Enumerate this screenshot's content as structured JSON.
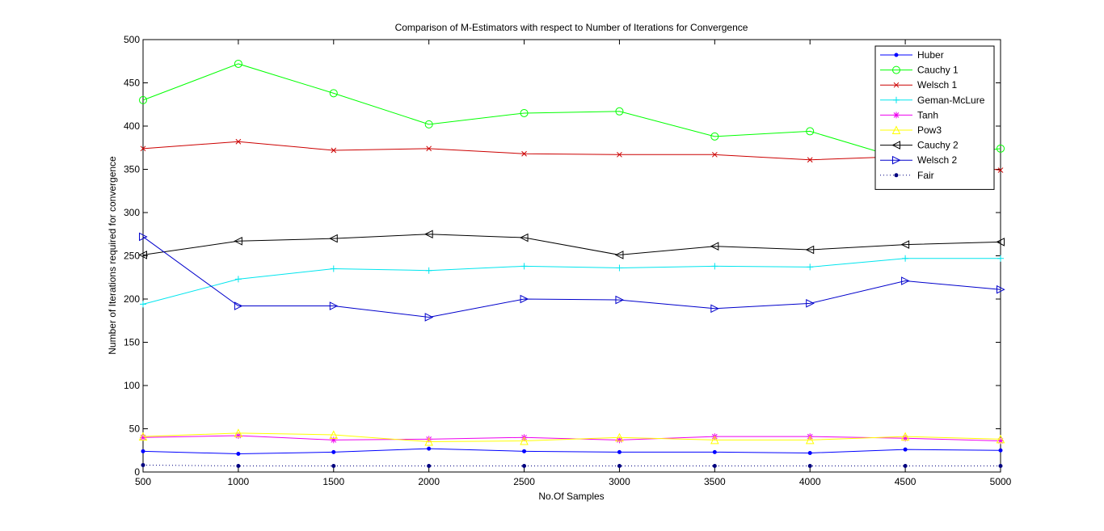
{
  "chart_data": {
    "type": "line",
    "title": "Comparison of M-Estimators with respect to Number of Iterations for Convergence",
    "xlabel": "No.Of Samples",
    "ylabel": "Number of Iterations required for convergence",
    "xlim": [
      500,
      5000
    ],
    "ylim": [
      0,
      500
    ],
    "xticks": [
      500,
      1000,
      1500,
      2000,
      2500,
      3000,
      3500,
      4000,
      4500,
      5000
    ],
    "yticks": [
      0,
      50,
      100,
      150,
      200,
      250,
      300,
      350,
      400,
      450,
      500
    ],
    "grid": false,
    "legend_position": "top-right",
    "x": [
      500,
      1000,
      1500,
      2000,
      2500,
      3000,
      3500,
      4000,
      4500,
      5000
    ],
    "series": [
      {
        "name": "Huber",
        "color": "#0000ff",
        "marker": "dot",
        "dash": "solid",
        "values": [
          24,
          21,
          23,
          27,
          24,
          23,
          23,
          22,
          26,
          25
        ]
      },
      {
        "name": "Cauchy 1",
        "color": "#00ff00",
        "marker": "circle",
        "dash": "solid",
        "values": [
          430,
          472,
          438,
          402,
          415,
          417,
          388,
          394,
          361,
          374
        ]
      },
      {
        "name": "Welsch 1",
        "color": "#cc0000",
        "marker": "x",
        "dash": "solid",
        "values": [
          374,
          382,
          372,
          374,
          368,
          367,
          367,
          361,
          365,
          349
        ]
      },
      {
        "name": "Geman-McLure",
        "color": "#00e5ee",
        "marker": "plus",
        "dash": "solid",
        "values": [
          194,
          223,
          235,
          233,
          238,
          236,
          238,
          237,
          247,
          247
        ]
      },
      {
        "name": "Tanh",
        "color": "#ee00ee",
        "marker": "star",
        "dash": "solid",
        "values": [
          40,
          42,
          37,
          38,
          40,
          37,
          41,
          41,
          39,
          36
        ]
      },
      {
        "name": "Pow3",
        "color": "#ffff00",
        "marker": "triangle-up",
        "dash": "solid",
        "values": [
          41,
          45,
          43,
          35,
          36,
          40,
          37,
          37,
          41,
          38
        ]
      },
      {
        "name": "Cauchy 2",
        "color": "#000000",
        "marker": "triangle-left",
        "dash": "solid",
        "values": [
          251,
          267,
          270,
          275,
          271,
          251,
          261,
          257,
          263,
          266
        ]
      },
      {
        "name": "Welsch 2",
        "color": "#0000cc",
        "marker": "triangle-right",
        "dash": "solid",
        "values": [
          272,
          192,
          192,
          179,
          200,
          199,
          189,
          195,
          221,
          211
        ]
      },
      {
        "name": "Fair",
        "color": "#000080",
        "marker": "dot",
        "dash": "dotted",
        "values": [
          8,
          7,
          7,
          7,
          7,
          7,
          7,
          7,
          7,
          7
        ]
      }
    ]
  }
}
